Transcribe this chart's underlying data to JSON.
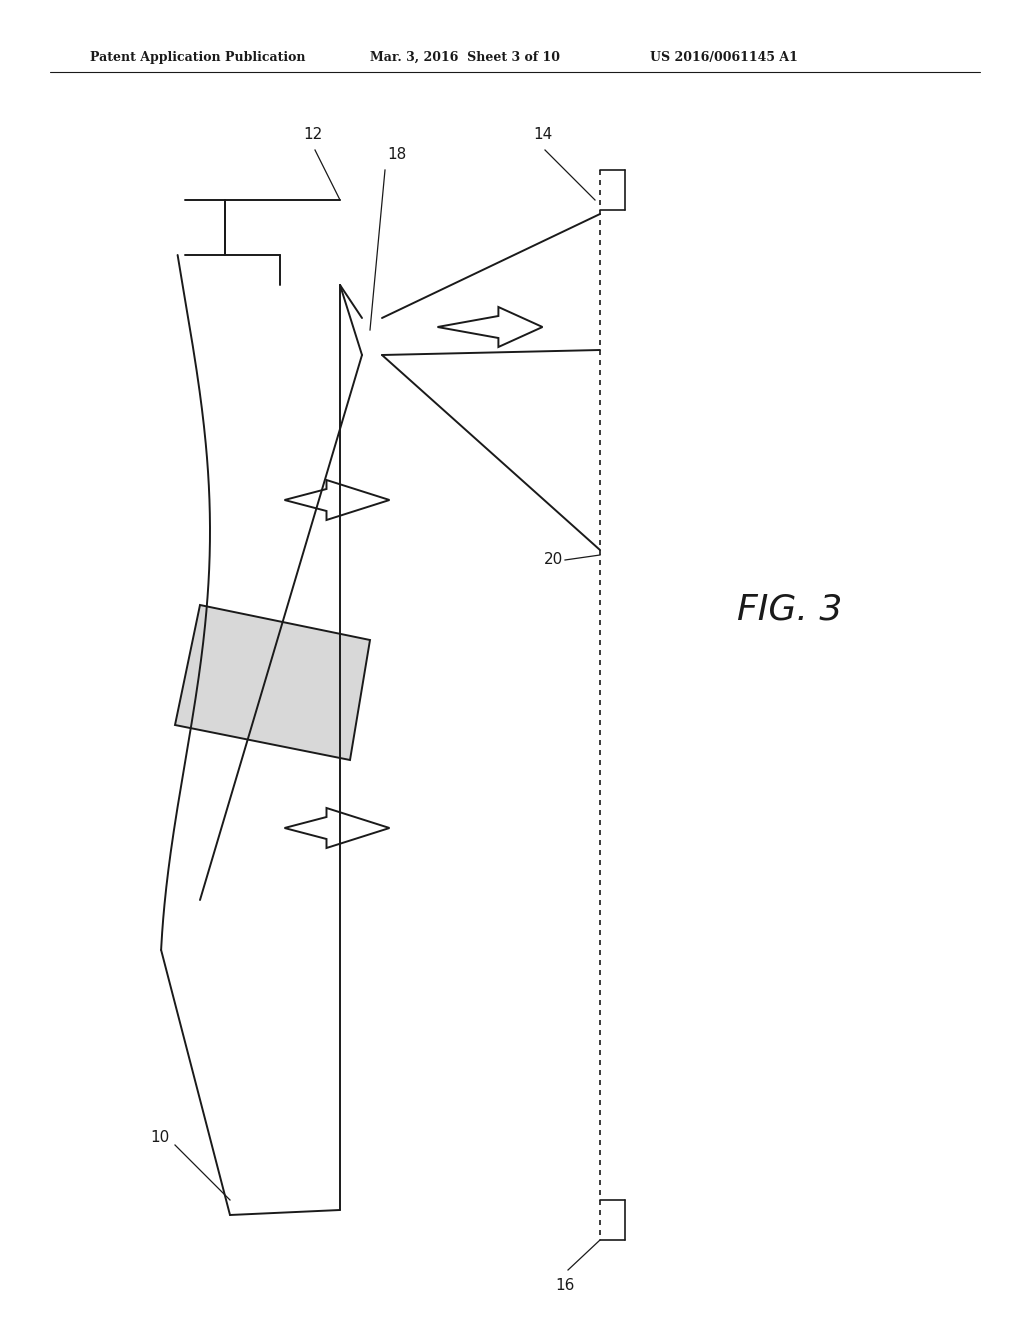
{
  "bg_color": "#ffffff",
  "line_color": "#1a1a1a",
  "header_text1": "Patent Application Publication",
  "header_text2": "Mar. 3, 2016  Sheet 3 of 10",
  "header_text3": "US 2016/0061145 A1",
  "fig_label": "FIG. 3",
  "lw": 1.4,
  "lw_thin": 0.9
}
